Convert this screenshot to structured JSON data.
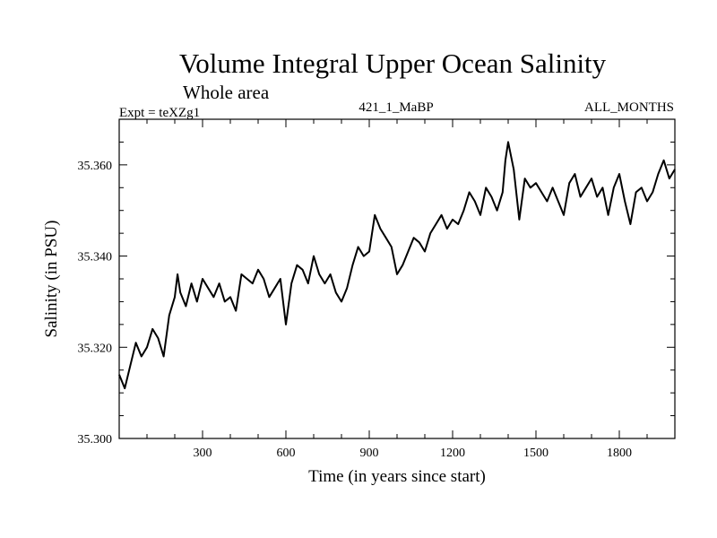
{
  "chart_data": {
    "type": "line",
    "title": "Volume Integral Upper Ocean Salinity",
    "subtitle": "Whole area",
    "header_left": "Expt = teXZg1",
    "header_center": "421_1_MaBP",
    "header_right": "ALL_MONTHS",
    "xlabel": "Time (in years since start)",
    "ylabel": "Salinity (in PSU)",
    "xlim": [
      0,
      2000
    ],
    "ylim": [
      35.3,
      35.37
    ],
    "x_ticks": [
      300,
      600,
      900,
      1200,
      1500,
      1800
    ],
    "x_tick_labels": [
      "300",
      "600",
      "900",
      "1200",
      "1500",
      "1800"
    ],
    "y_ticks": [
      35.3,
      35.32,
      35.34,
      35.36
    ],
    "y_tick_labels": [
      "35.300",
      "35.320",
      "35.340",
      "35.360"
    ],
    "series": [
      {
        "name": "Salinity",
        "color": "#000000",
        "x": [
          0,
          20,
          40,
          60,
          80,
          100,
          120,
          140,
          160,
          180,
          200,
          210,
          220,
          240,
          260,
          280,
          300,
          320,
          340,
          360,
          380,
          400,
          420,
          440,
          460,
          480,
          500,
          520,
          540,
          560,
          580,
          600,
          620,
          640,
          660,
          680,
          700,
          720,
          740,
          760,
          780,
          800,
          820,
          840,
          860,
          880,
          900,
          920,
          940,
          960,
          980,
          1000,
          1020,
          1040,
          1060,
          1080,
          1100,
          1120,
          1140,
          1160,
          1180,
          1200,
          1220,
          1240,
          1260,
          1280,
          1300,
          1320,
          1340,
          1360,
          1380,
          1390,
          1400,
          1420,
          1440,
          1460,
          1480,
          1500,
          1520,
          1540,
          1560,
          1580,
          1600,
          1620,
          1640,
          1660,
          1680,
          1700,
          1720,
          1740,
          1760,
          1780,
          1800,
          1820,
          1840,
          1860,
          1880,
          1900,
          1920,
          1940,
          1960,
          1980,
          2000
        ],
        "values": [
          35.314,
          35.311,
          35.316,
          35.321,
          35.318,
          35.32,
          35.324,
          35.322,
          35.318,
          35.327,
          35.331,
          35.336,
          35.332,
          35.329,
          35.334,
          35.33,
          35.335,
          35.333,
          35.331,
          35.334,
          35.33,
          35.331,
          35.328,
          35.336,
          35.335,
          35.334,
          35.337,
          35.335,
          35.331,
          35.333,
          35.335,
          35.325,
          35.334,
          35.338,
          35.337,
          35.334,
          35.34,
          35.336,
          35.334,
          35.336,
          35.332,
          35.33,
          35.333,
          35.338,
          35.342,
          35.34,
          35.341,
          35.349,
          35.346,
          35.344,
          35.342,
          35.336,
          35.338,
          35.341,
          35.344,
          35.343,
          35.341,
          35.345,
          35.347,
          35.349,
          35.346,
          35.348,
          35.347,
          35.35,
          35.354,
          35.352,
          35.349,
          35.355,
          35.353,
          35.35,
          35.354,
          35.361,
          35.365,
          35.359,
          35.348,
          35.357,
          35.355,
          35.356,
          35.354,
          35.352,
          35.355,
          35.352,
          35.349,
          35.356,
          35.358,
          35.353,
          35.355,
          35.357,
          35.353,
          35.355,
          35.349,
          35.355,
          35.358,
          35.352,
          35.347,
          35.354,
          35.355,
          35.352,
          35.354,
          35.358,
          35.361,
          35.357,
          35.359
        ]
      }
    ]
  }
}
